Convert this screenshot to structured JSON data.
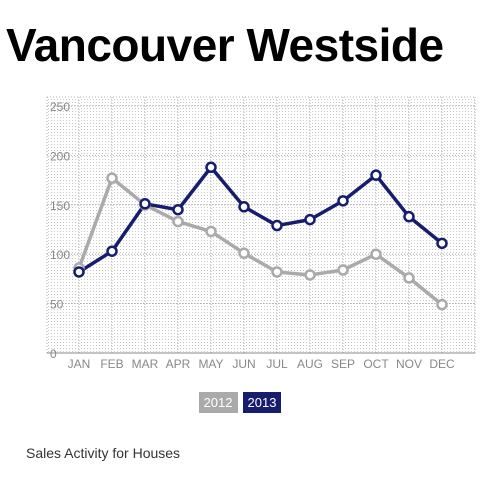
{
  "page": {
    "title": "Vancouver Westside",
    "caption": "Sales Activity for Houses"
  },
  "chart_data": {
    "type": "line",
    "title": "Vancouver Westside",
    "subtitle": "Sales Activity for Houses",
    "xlabel": "",
    "ylabel": "",
    "categories": [
      "JAN",
      "FEB",
      "MAR",
      "APR",
      "MAY",
      "JUN",
      "JUL",
      "AUG",
      "SEP",
      "OCT",
      "NOV",
      "DEC"
    ],
    "yticks": [
      "0",
      "50",
      "100",
      "150",
      "200",
      "250"
    ],
    "ylim": [
      0,
      250
    ],
    "grid": true,
    "legend": "bottom-center",
    "series": [
      {
        "name": "2012",
        "color": "#aaaaaa",
        "values": [
          86,
          177,
          150,
          133,
          123,
          101,
          82,
          79,
          84,
          100,
          76,
          49
        ]
      },
      {
        "name": "2013",
        "color": "#161c6e",
        "values": [
          82,
          103,
          151,
          145,
          188,
          148,
          129,
          135,
          154,
          180,
          138,
          111
        ]
      }
    ]
  }
}
